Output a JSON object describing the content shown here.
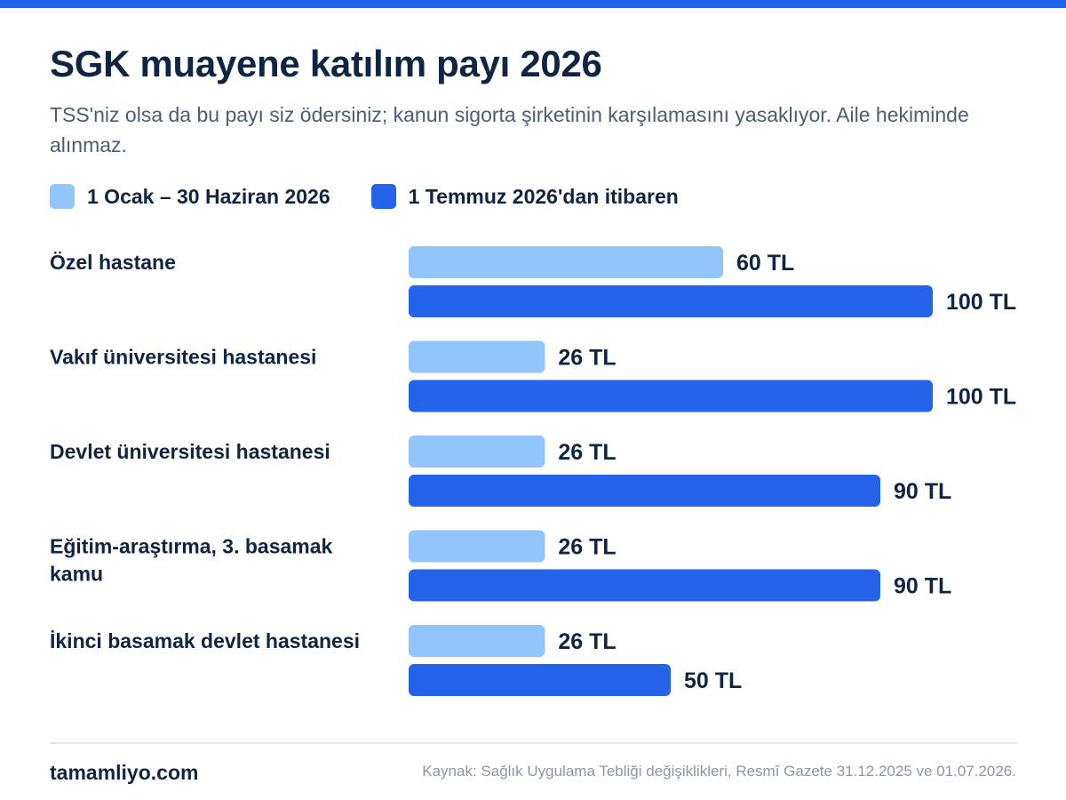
{
  "title": "SGK muayene katılım payı 2026",
  "subtitle": "TSS'niz olsa da bu payı siz ödersiniz; kanun sigorta şirketinin karşılamasını yasaklıyor. Aile hekiminde alınmaz.",
  "colors": {
    "accent": "#2563eb",
    "light": "#93c5fd",
    "text": "#0f2544"
  },
  "chart_data": {
    "type": "bar",
    "orientation": "horizontal",
    "categories": [
      [
        "Özel hastane"
      ],
      [
        "Vakıf üniversitesi hastanesi"
      ],
      [
        "Devlet üniversitesi hastanesi"
      ],
      [
        "Eğitim-araştırma, 3. basamak",
        "kamu"
      ],
      [
        "İkinci basamak devlet hastanesi"
      ]
    ],
    "series": [
      {
        "name": "1 Ocak – 30 Haziran 2026",
        "color": "#93c5fd",
        "values": [
          60,
          26,
          26,
          26,
          26
        ]
      },
      {
        "name": "1 Temmuz 2026'dan itibaren",
        "color": "#2563eb",
        "values": [
          100,
          100,
          90,
          90,
          50
        ]
      }
    ],
    "value_suffix": " TL",
    "xlim": [
      0,
      100
    ],
    "grid": false,
    "legend": "top-left"
  },
  "footer": {
    "brand": "tamamliyo.com",
    "source": "Kaynak: Sağlık Uygulama Tebliği değişiklikleri, Resmî Gazete 31.12.2025 ve 01.07.2026."
  }
}
